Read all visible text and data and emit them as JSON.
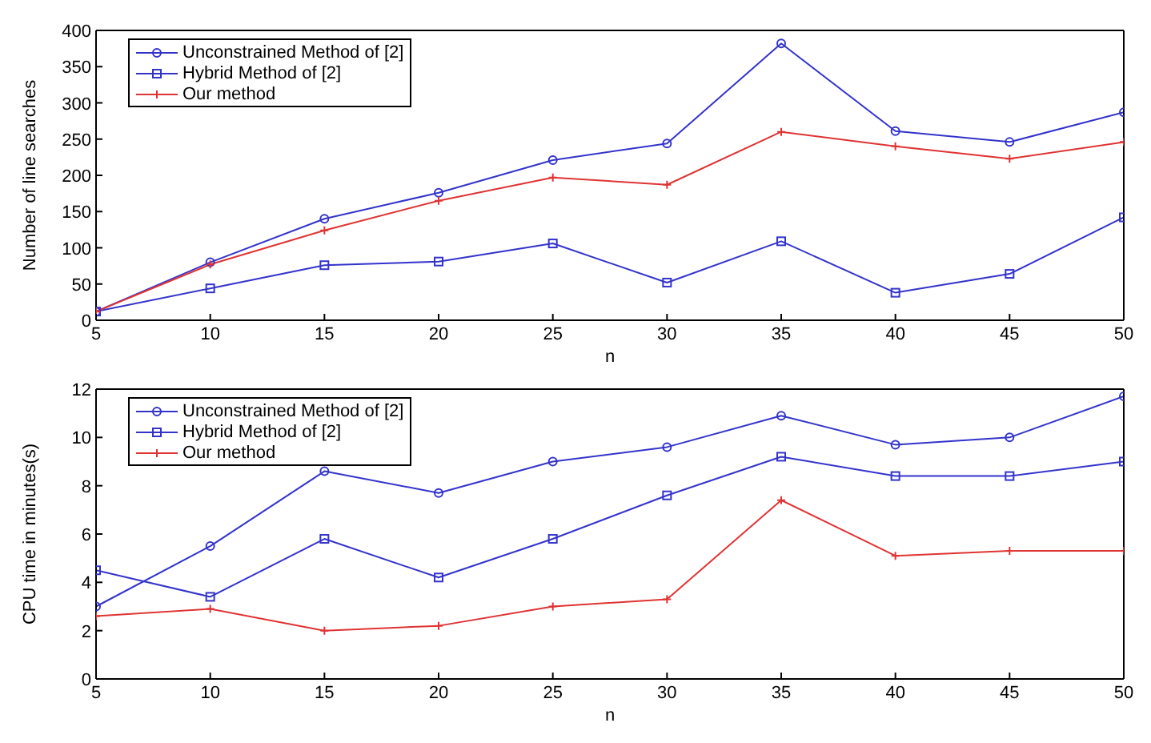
{
  "chart_data": [
    {
      "type": "line",
      "xlabel": "n",
      "ylabel": "Number of line searches",
      "x": [
        5,
        10,
        15,
        20,
        25,
        30,
        35,
        40,
        45,
        50
      ],
      "xlim": [
        5,
        50
      ],
      "xticks": [
        5,
        10,
        15,
        20,
        25,
        30,
        35,
        40,
        45,
        50
      ],
      "ylim": [
        0,
        400
      ],
      "yticks": [
        0,
        50,
        100,
        150,
        200,
        250,
        300,
        350,
        400
      ],
      "grid": false,
      "legend": "top left",
      "line_style": "solid",
      "series": [
        {
          "name": "Unconstrained Method of [2]",
          "color": "#3333cc",
          "marker": "circle",
          "values": [
            12,
            80,
            140,
            176,
            221,
            244,
            382,
            261,
            246,
            287
          ]
        },
        {
          "name": "Hybrid Method of [2]",
          "color": "#3333cc",
          "marker": "square",
          "values": [
            12,
            44,
            76,
            81,
            106,
            52,
            109,
            38,
            64,
            142
          ]
        },
        {
          "name": "Our method",
          "color": "#e03333",
          "marker": "cross",
          "values": [
            12,
            77,
            124,
            165,
            197,
            187,
            260,
            240,
            223,
            246
          ]
        }
      ]
    },
    {
      "type": "line",
      "xlabel": "n",
      "ylabel": "CPU time in minutes(s)",
      "x": [
        5,
        10,
        15,
        20,
        25,
        30,
        35,
        40,
        45,
        50
      ],
      "xlim": [
        5,
        50
      ],
      "xticks": [
        5,
        10,
        15,
        20,
        25,
        30,
        35,
        40,
        45,
        50
      ],
      "ylim": [
        0,
        12
      ],
      "yticks": [
        0,
        2,
        4,
        6,
        8,
        10,
        12
      ],
      "grid": false,
      "legend": "top left",
      "line_style": "solid",
      "series": [
        {
          "name": "Unconstrained Method of [2]",
          "color": "#3333cc",
          "marker": "circle",
          "values": [
            3.0,
            5.5,
            8.6,
            7.7,
            9.0,
            9.6,
            10.9,
            9.7,
            10.0,
            11.7
          ]
        },
        {
          "name": "Hybrid Method of [2]",
          "color": "#3333cc",
          "marker": "square",
          "values": [
            4.5,
            3.4,
            5.8,
            4.2,
            5.8,
            7.6,
            9.2,
            8.4,
            8.4,
            9.0
          ]
        },
        {
          "name": "Our method",
          "color": "#e03333",
          "marker": "cross",
          "values": [
            2.6,
            2.9,
            2.0,
            2.2,
            3.0,
            3.3,
            7.4,
            5.1,
            5.3,
            5.3
          ]
        }
      ]
    }
  ]
}
